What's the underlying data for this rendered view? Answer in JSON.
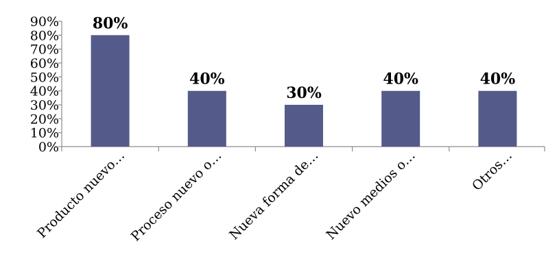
{
  "chart_data": {
    "type": "bar",
    "categories": [
      "Producto nuevo…",
      "Proceso nuevo o…",
      "Nueva forma de…",
      "Nuevo medios o…",
      "Otros…"
    ],
    "values": [
      80,
      40,
      30,
      40,
      40
    ],
    "data_labels": [
      "80%",
      "40%",
      "30%",
      "40%",
      "40%"
    ],
    "ylim": [
      0,
      90
    ],
    "yticks": [
      0,
      10,
      20,
      30,
      40,
      50,
      60,
      70,
      80,
      90
    ],
    "ytick_labels": [
      "0%",
      "10%",
      "20%",
      "30%",
      "40%",
      "50%",
      "60%",
      "70%",
      "80%",
      "90%"
    ],
    "bar_color": "#545a8a",
    "grid": false,
    "legend": "none"
  }
}
